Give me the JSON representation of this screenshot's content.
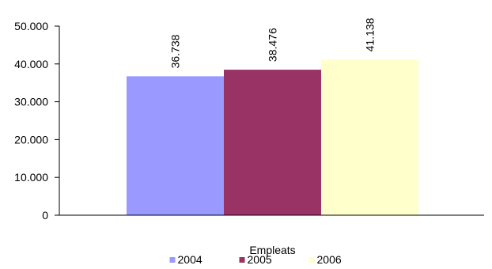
{
  "chart_data": {
    "type": "bar",
    "categories": [
      "Empleats"
    ],
    "series": [
      {
        "name": "2004",
        "values": [
          36738
        ],
        "label": "36.738",
        "color": "#9999FF"
      },
      {
        "name": "2005",
        "values": [
          38476
        ],
        "label": "38.476",
        "color": "#993366"
      },
      {
        "name": "2006",
        "values": [
          41138
        ],
        "label": "41.138",
        "color": "#FFFFCC"
      }
    ],
    "xlabel": "Empleats",
    "ylabel": "",
    "ylim": [
      0,
      50000
    ],
    "yticks": [
      {
        "value": 0,
        "label": "0"
      },
      {
        "value": 10000,
        "label": "10.000"
      },
      {
        "value": 20000,
        "label": "20.000"
      },
      {
        "value": 30000,
        "label": "30.000"
      },
      {
        "value": 40000,
        "label": "40.000"
      },
      {
        "value": 50000,
        "label": "50.000"
      }
    ],
    "grid": false,
    "legend_position": "bottom"
  }
}
